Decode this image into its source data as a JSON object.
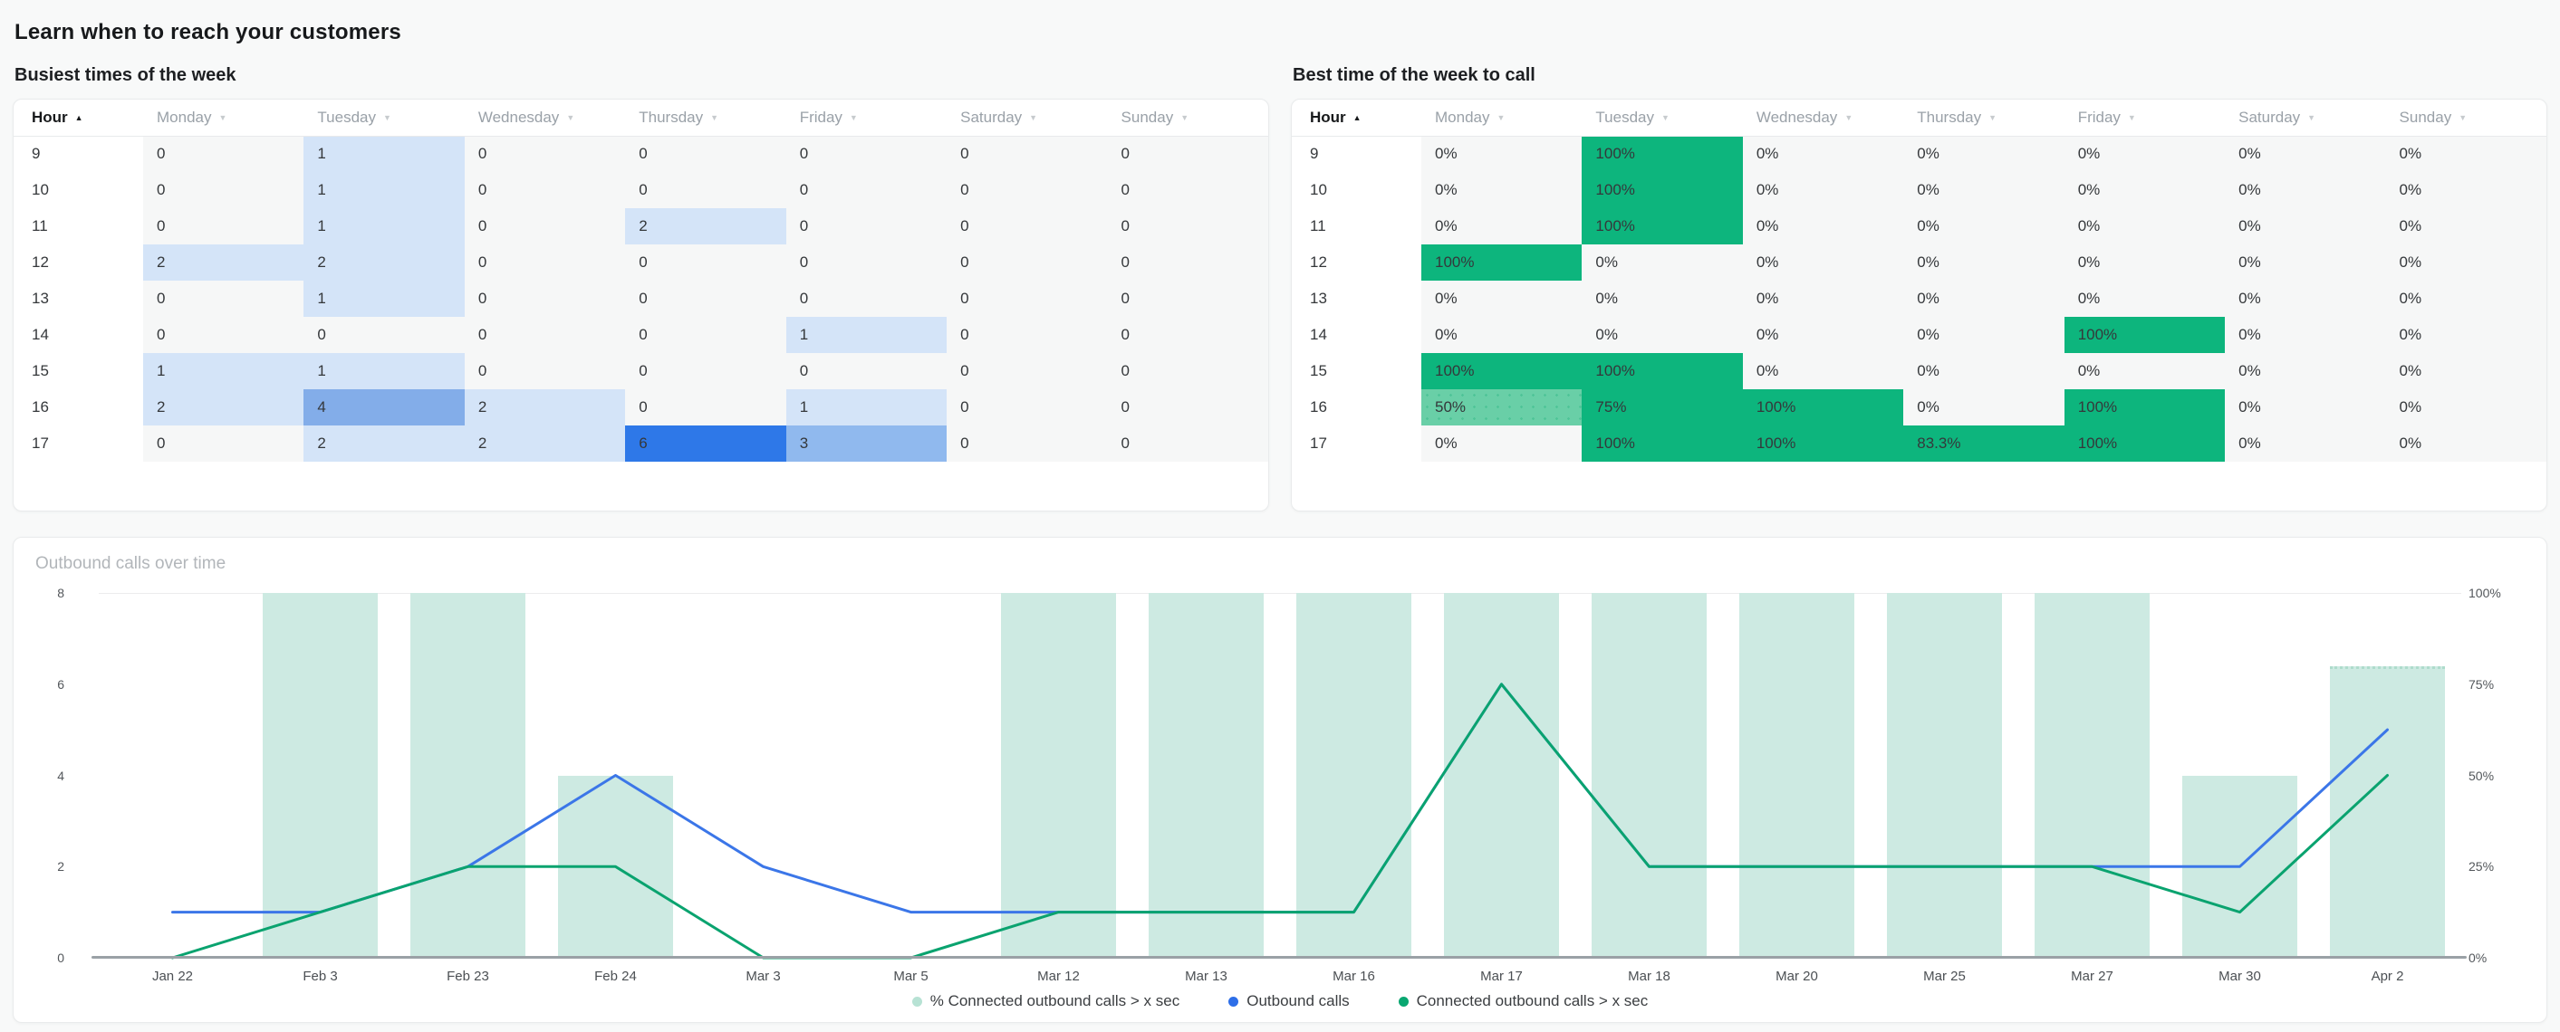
{
  "page": {
    "title": "Learn when to reach your customers"
  },
  "columns": {
    "hour_label": "Hour",
    "days": [
      "Monday",
      "Tuesday",
      "Wednesday",
      "Thursday",
      "Friday",
      "Saturday",
      "Sunday"
    ],
    "sort_asc_glyph": "▲",
    "sort_glyph": "▼"
  },
  "busiest": {
    "title": "Busiest times of the week",
    "hours": [
      "9",
      "10",
      "11",
      "12",
      "13",
      "14",
      "15",
      "16",
      "17"
    ],
    "rows": [
      [
        0,
        1,
        0,
        0,
        0,
        0,
        0
      ],
      [
        0,
        1,
        0,
        0,
        0,
        0,
        0
      ],
      [
        0,
        1,
        0,
        2,
        0,
        0,
        0
      ],
      [
        2,
        2,
        0,
        0,
        0,
        0,
        0
      ],
      [
        0,
        1,
        0,
        0,
        0,
        0,
        0
      ],
      [
        0,
        0,
        0,
        0,
        1,
        0,
        0
      ],
      [
        1,
        1,
        0,
        0,
        0,
        0,
        0
      ],
      [
        2,
        4,
        2,
        0,
        1,
        0,
        0
      ],
      [
        0,
        2,
        2,
        6,
        3,
        0,
        0
      ]
    ],
    "palette": {
      "zero": "#f6f7f7",
      "low": "#d4e4f8",
      "mid": "#90b9ee",
      "mid_high": "#83ade9",
      "high": "#2e78e8"
    }
  },
  "best": {
    "title": "Best time of the week to call",
    "hours": [
      "9",
      "10",
      "11",
      "12",
      "13",
      "14",
      "15",
      "16",
      "17"
    ],
    "rows": [
      [
        "0%",
        "100%",
        "0%",
        "0%",
        "0%",
        "0%",
        "0%"
      ],
      [
        "0%",
        "100%",
        "0%",
        "0%",
        "0%",
        "0%",
        "0%"
      ],
      [
        "0%",
        "100%",
        "0%",
        "0%",
        "0%",
        "0%",
        "0%"
      ],
      [
        "100%",
        "0%",
        "0%",
        "0%",
        "0%",
        "0%",
        "0%"
      ],
      [
        "0%",
        "0%",
        "0%",
        "0%",
        "0%",
        "0%",
        "0%"
      ],
      [
        "0%",
        "0%",
        "0%",
        "0%",
        "100%",
        "0%",
        "0%"
      ],
      [
        "100%",
        "100%",
        "0%",
        "0%",
        "0%",
        "0%",
        "0%"
      ],
      [
        "50%",
        "75%",
        "100%",
        "0%",
        "100%",
        "0%",
        "0%"
      ],
      [
        "0%",
        "100%",
        "100%",
        "83.3%",
        "100%",
        "0%",
        "0%"
      ]
    ],
    "palette": {
      "zero": "#f6f7f7",
      "partial": "#69cfa7",
      "full": "#0db57d"
    }
  },
  "chart_data": {
    "type": "bar",
    "title": "Outbound calls over time",
    "categories": [
      "Jan 22",
      "Feb 3",
      "Feb 23",
      "Feb 24",
      "Mar 3",
      "Mar 5",
      "Mar 12",
      "Mar 13",
      "Mar 16",
      "Mar 17",
      "Mar 18",
      "Mar 20",
      "Mar 25",
      "Mar 27",
      "Mar 30",
      "Apr 2"
    ],
    "series": [
      {
        "name": "% Connected outbound calls > x sec",
        "type": "bar",
        "axis": "right",
        "color": "#cdeae2",
        "dot_color": "#b7e2d4",
        "values": [
          0,
          100,
          100,
          50,
          0,
          0,
          100,
          100,
          100,
          100,
          100,
          100,
          100,
          100,
          50,
          80
        ]
      },
      {
        "name": "Outbound calls",
        "type": "line",
        "axis": "left",
        "color": "#3b76e8",
        "dot_color": "#2d6ee8",
        "values": [
          1,
          1,
          2,
          4,
          2,
          1,
          1,
          1,
          1,
          6,
          2,
          2,
          2,
          2,
          2,
          5
        ]
      },
      {
        "name": "Connected outbound calls > x sec",
        "type": "line",
        "axis": "left",
        "color": "#0aa36f",
        "dot_color": "#09a771",
        "values": [
          0,
          1,
          2,
          2,
          0,
          0,
          1,
          1,
          1,
          6,
          2,
          2,
          2,
          2,
          1,
          4
        ]
      }
    ],
    "left_axis": {
      "min": 0,
      "max": 8,
      "ticks": [
        "8",
        "6",
        "4",
        "2",
        "0"
      ]
    },
    "right_axis": {
      "min": 0,
      "max": 100,
      "ticks": [
        "100%",
        "75%",
        "50%",
        "25%",
        "0%"
      ]
    },
    "grid": "top-line-only",
    "legend_position": "bottom-center"
  }
}
